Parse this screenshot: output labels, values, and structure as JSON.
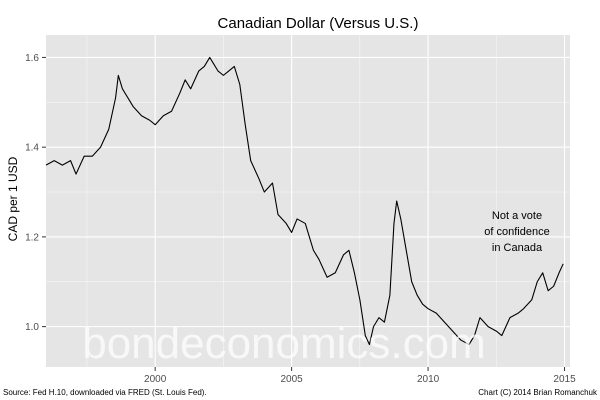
{
  "chart_data": {
    "type": "line",
    "title": "Canadian Dollar (Versus U.S.)",
    "xlabel": "",
    "ylabel": "CAD per 1 USD",
    "xlim": [
      1996.0,
      2015.2
    ],
    "ylim": [
      0.91,
      1.65
    ],
    "x_ticks": [
      2000,
      2005,
      2010,
      2015
    ],
    "x_tick_labels": [
      "2000",
      "2005",
      "2010",
      "2015"
    ],
    "y_ticks": [
      1.0,
      1.2,
      1.4,
      1.6
    ],
    "y_tick_labels": [
      "1.0",
      "1.2",
      "1.4",
      "1.6"
    ],
    "grid": true,
    "legend": "none",
    "line_color": "#000000",
    "panel_color": "#e5e5e5",
    "grid_color": "#ffffff",
    "annotation": [
      "Not a vote",
      "of confidence",
      "in Canada"
    ],
    "watermark": "bondeconomics.com",
    "source_note": "Source: Fed H.10, downloaded via FRED (St. Louis Fed).",
    "credit_note": "Chart (C) 2014 Brian Romanchuk",
    "series": [
      {
        "x": [
          1996.0,
          1996.3,
          1996.6,
          1996.9,
          1997.1,
          1997.4,
          1997.7,
          1998.0,
          1998.3,
          1998.55,
          1998.65,
          1998.8,
          1999.0,
          1999.2,
          1999.5,
          1999.8,
          2000.0,
          2000.3,
          2000.6,
          2000.9,
          2001.1,
          2001.3,
          2001.6,
          2001.8,
          2002.0,
          2002.1,
          2002.3,
          2002.5,
          2002.7,
          2002.9,
          2003.1,
          2003.3,
          2003.5,
          2003.8,
          2004.0,
          2004.3,
          2004.5,
          2004.8,
          2005.0,
          2005.2,
          2005.5,
          2005.8,
          2006.0,
          2006.3,
          2006.6,
          2006.9,
          2007.1,
          2007.3,
          2007.5,
          2007.7,
          2007.85,
          2008.0,
          2008.2,
          2008.4,
          2008.6,
          2008.75,
          2008.85,
          2009.0,
          2009.2,
          2009.4,
          2009.6,
          2009.8,
          2010.0,
          2010.3,
          2010.6,
          2010.9,
          2011.2,
          2011.5,
          2011.7,
          2011.9,
          2012.2,
          2012.5,
          2012.7,
          2013.0,
          2013.3,
          2013.5,
          2013.8,
          2014.0,
          2014.2,
          2014.4,
          2014.6,
          2014.8,
          2014.95
        ],
        "y": [
          1.36,
          1.37,
          1.36,
          1.37,
          1.34,
          1.38,
          1.38,
          1.4,
          1.44,
          1.51,
          1.56,
          1.53,
          1.51,
          1.49,
          1.47,
          1.46,
          1.45,
          1.47,
          1.48,
          1.52,
          1.55,
          1.53,
          1.57,
          1.58,
          1.6,
          1.59,
          1.57,
          1.56,
          1.57,
          1.58,
          1.54,
          1.45,
          1.37,
          1.33,
          1.3,
          1.32,
          1.25,
          1.23,
          1.21,
          1.24,
          1.23,
          1.17,
          1.15,
          1.11,
          1.12,
          1.16,
          1.17,
          1.12,
          1.06,
          0.98,
          0.96,
          1.0,
          1.02,
          1.01,
          1.07,
          1.23,
          1.28,
          1.24,
          1.17,
          1.1,
          1.07,
          1.05,
          1.04,
          1.03,
          1.01,
          0.99,
          0.97,
          0.96,
          0.98,
          1.02,
          1.0,
          0.99,
          0.98,
          1.02,
          1.03,
          1.04,
          1.06,
          1.1,
          1.12,
          1.08,
          1.09,
          1.12,
          1.14
        ]
      }
    ]
  }
}
